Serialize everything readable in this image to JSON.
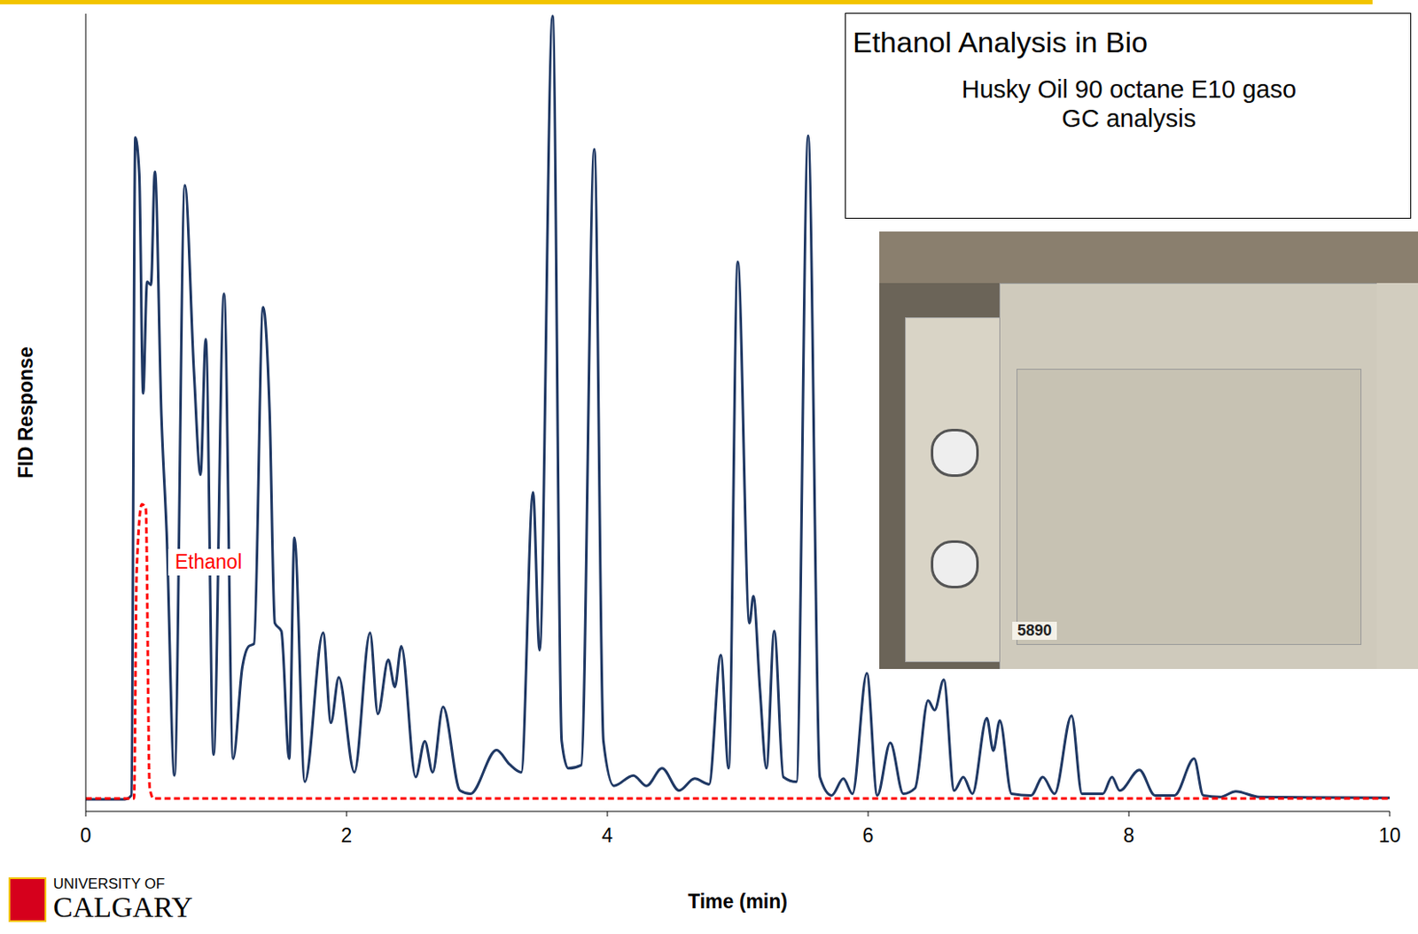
{
  "chart_data": {
    "type": "line",
    "title": "Ethanol Analysis in Bio",
    "subtitle": [
      "Husky Oil 90 octane E10 gaso",
      "GC analysis"
    ],
    "x_label": "Time (min)",
    "y_label": "FID Response",
    "xlim": [
      0,
      10
    ],
    "xticks": [
      0,
      2,
      4,
      6,
      8,
      10
    ],
    "ylim": [
      0,
      100
    ],
    "tick_labels": "x",
    "grid": false,
    "series": [
      {
        "color": "#1f3864",
        "line_style": "solid",
        "x": [
          0,
          0.3,
          0.35,
          0.38,
          0.41,
          0.44,
          0.47,
          0.5,
          0.53,
          0.58,
          0.62,
          0.68,
          0.76,
          0.83,
          0.88,
          0.92,
          0.98,
          1.06,
          1.13,
          1.2,
          1.25,
          1.29,
          1.36,
          1.41,
          1.45,
          1.5,
          1.56,
          1.6,
          1.68,
          1.82,
          1.88,
          1.94,
          2.06,
          2.18,
          2.24,
          2.32,
          2.37,
          2.42,
          2.53,
          2.6,
          2.66,
          2.74,
          2.87,
          2.95,
          3.15,
          3.25,
          3.34,
          3.43,
          3.48,
          3.58,
          3.65,
          3.7,
          3.8,
          3.9,
          3.97,
          4.05,
          4.2,
          4.3,
          4.42,
          4.55,
          4.67,
          4.78,
          4.87,
          4.93,
          5.0,
          5.09,
          5.12,
          5.17,
          5.22,
          5.28,
          5.35,
          5.45,
          5.54,
          5.63,
          5.72,
          5.81,
          5.88,
          5.99,
          6.07,
          6.17,
          6.27,
          6.36,
          6.46,
          6.51,
          6.58,
          6.66,
          6.73,
          6.8,
          6.91,
          6.96,
          7.01,
          7.1,
          7.25,
          7.34,
          7.43,
          7.56,
          7.64,
          7.8,
          7.87,
          7.93,
          8.08,
          8.2,
          8.35,
          8.5,
          8.57,
          8.7,
          8.82,
          9.0,
          10
        ],
        "values": [
          1.5,
          1.5,
          2,
          84.5,
          80,
          52.4,
          66.4,
          66,
          80.2,
          49.6,
          35,
          4.5,
          78.5,
          55,
          42.2,
          59.2,
          7.1,
          64.9,
          6.6,
          18,
          20.7,
          21,
          63.2,
          50,
          23.6,
          22.6,
          6.6,
          34.3,
          3.7,
          22.4,
          11.1,
          16.8,
          4.9,
          22.4,
          12.2,
          19.0,
          15.6,
          20.7,
          4.3,
          8.8,
          4.9,
          13.1,
          2.6,
          2.2,
          7.7,
          5.9,
          4.9,
          40.0,
          20.2,
          99.7,
          8.8,
          5.4,
          5.8,
          83.0,
          8.8,
          3.2,
          4.5,
          3.2,
          5.4,
          2.6,
          4.1,
          3.4,
          19.6,
          5.4,
          68.9,
          23.6,
          27.0,
          15.4,
          5.4,
          22.6,
          4.3,
          3.7,
          84.7,
          4.3,
          2.0,
          4.1,
          2.2,
          17.3,
          2.0,
          8.6,
          2.2,
          2.9,
          13.9,
          12.7,
          16.5,
          2.6,
          4.3,
          2.2,
          11.7,
          7.6,
          11.4,
          2.2,
          2.0,
          4.3,
          2.2,
          12.0,
          2.2,
          2.2,
          4.3,
          2.6,
          5.2,
          2.0,
          2.0,
          6.6,
          2.0,
          1.8,
          2.5,
          1.8,
          1.7
        ]
      },
      {
        "name": "Ethanol",
        "color": "#ff0000",
        "line_style": "dashed",
        "x": [
          0,
          0.37,
          0.39,
          0.43,
          0.46,
          0.49,
          0.52,
          10
        ],
        "values": [
          1.6,
          1.6,
          30,
          38.5,
          38,
          3,
          1.6,
          1.6
        ]
      }
    ]
  },
  "logo": [
    "UNIVERSITY OF",
    "CALGARY"
  ],
  "photo_label": "5890"
}
